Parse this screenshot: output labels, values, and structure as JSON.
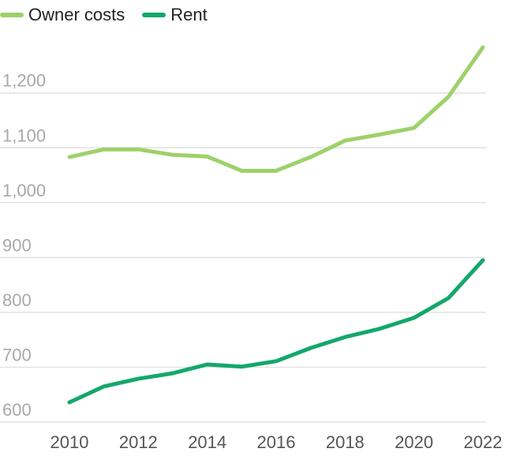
{
  "chart_data": {
    "type": "line",
    "x": [
      2010,
      2011,
      2012,
      2013,
      2014,
      2015,
      2016,
      2017,
      2018,
      2019,
      2020,
      2021,
      2022
    ],
    "series": [
      {
        "name": "Owner costs",
        "color": "#9dd16a",
        "values": [
          1083,
          1097,
          1097,
          1087,
          1084,
          1058,
          1058,
          1083,
          1113,
          1124,
          1136,
          1193,
          1283
        ]
      },
      {
        "name": "Rent",
        "color": "#14a76c",
        "values": [
          636,
          665,
          679,
          689,
          705,
          701,
          711,
          735,
          755,
          770,
          790,
          826,
          895
        ]
      }
    ],
    "x_ticks": [
      "2010",
      "2012",
      "2014",
      "2016",
      "2018",
      "2020",
      "2022"
    ],
    "y_ticks": [
      "600",
      "700",
      "800",
      "900",
      "1,000",
      "1,100",
      "1,200"
    ],
    "ylim": [
      600,
      1290
    ],
    "grid": true,
    "legend": "top-left"
  }
}
